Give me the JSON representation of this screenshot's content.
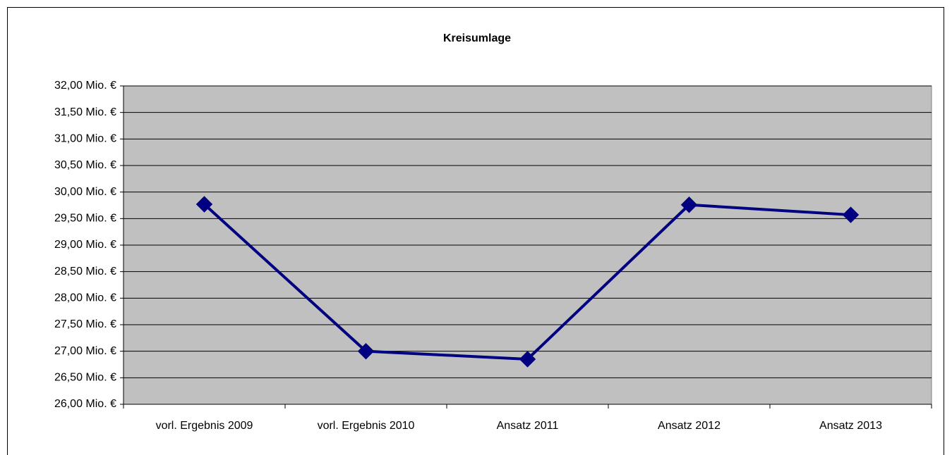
{
  "chart_data": {
    "type": "line",
    "title": "Kreisumlage",
    "categories": [
      "vorl. Ergebnis 2009",
      "vorl. Ergebnis 2010",
      "Ansatz 2011",
      "Ansatz 2012",
      "Ansatz 2013"
    ],
    "series": [
      {
        "name": "Kreisumlage",
        "color": "#000080",
        "values": [
          29.77,
          27.0,
          26.85,
          29.76,
          29.57
        ]
      }
    ],
    "ylim": [
      26,
      32
    ],
    "yticks": [
      {
        "value": 26,
        "label": "26,00 Mio. €"
      },
      {
        "value": 26.5,
        "label": "26,50 Mio. €"
      },
      {
        "value": 27,
        "label": "27,00 Mio. €"
      },
      {
        "value": 27.5,
        "label": "27,50 Mio. €"
      },
      {
        "value": 28,
        "label": "28,00 Mio. €"
      },
      {
        "value": 28.5,
        "label": "28,50 Mio. €"
      },
      {
        "value": 29,
        "label": "29,00 Mio. €"
      },
      {
        "value": 29.5,
        "label": "29,50 Mio. €"
      },
      {
        "value": 30,
        "label": "30,00 Mio. €"
      },
      {
        "value": 30.5,
        "label": "30,50 Mio. €"
      },
      {
        "value": 31,
        "label": "31,00 Mio. €"
      },
      {
        "value": 31.5,
        "label": "31,50 Mio. €"
      },
      {
        "value": 32,
        "label": "32,00 Mio. €"
      }
    ],
    "grid": true,
    "plot_background": "#c0c0c0"
  }
}
